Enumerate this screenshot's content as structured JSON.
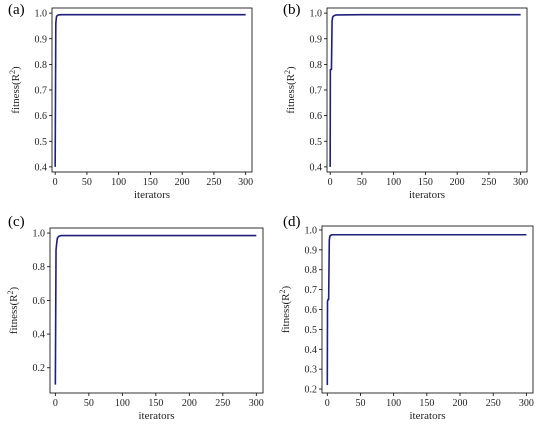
{
  "chart_data": [
    {
      "type": "line",
      "panel_label": "(a)",
      "xlabel": "iterators",
      "ylabel": "fitness(R",
      "ylabel_sup": "2",
      "ylabel_close": ")",
      "xlim": [
        -5,
        310
      ],
      "ylim": [
        0.38,
        1.02
      ],
      "xticks": [
        0,
        50,
        100,
        150,
        200,
        250,
        300
      ],
      "yticks": [
        0.4,
        0.5,
        0.6,
        0.7,
        0.8,
        0.9,
        1.0
      ],
      "ytick_labels": [
        "0.4",
        "0.5",
        "0.6",
        "0.7",
        "0.8",
        "0.9",
        "1.0"
      ],
      "grid": false,
      "series": [
        {
          "color": "#1f1f7a",
          "x": [
            0,
            1,
            2,
            3,
            5,
            10,
            50,
            100,
            200,
            300
          ],
          "y": [
            0.4,
            0.96,
            0.985,
            0.99,
            0.993,
            0.994,
            0.994,
            0.994,
            0.994,
            0.994
          ]
        }
      ]
    },
    {
      "type": "line",
      "panel_label": "(b)",
      "xlabel": "iterators",
      "ylabel": "fitness(R",
      "ylabel_sup": "2",
      "ylabel_close": ")",
      "xlim": [
        -5,
        310
      ],
      "ylim": [
        0.38,
        1.02
      ],
      "xticks": [
        0,
        50,
        100,
        150,
        200,
        250,
        300
      ],
      "yticks": [
        0.4,
        0.5,
        0.6,
        0.7,
        0.8,
        0.9,
        1.0
      ],
      "ytick_labels": [
        "0.4",
        "0.5",
        "0.6",
        "0.7",
        "0.8",
        "0.9",
        "1.0"
      ],
      "grid": false,
      "series": [
        {
          "color": "#1f1f7a",
          "x": [
            0,
            0.3,
            1,
            2,
            3,
            4,
            6,
            10,
            50,
            100,
            200,
            300
          ],
          "y": [
            0.4,
            0.78,
            0.78,
            0.78,
            0.97,
            0.985,
            0.99,
            0.993,
            0.994,
            0.994,
            0.994,
            0.994
          ]
        }
      ]
    },
    {
      "type": "line",
      "panel_label": "(c)",
      "xlabel": "iterators",
      "ylabel": "fitness(R",
      "ylabel_sup": "2",
      "ylabel_close": ")",
      "xlim": [
        -8,
        310
      ],
      "ylim": [
        0.05,
        1.03
      ],
      "xticks": [
        0,
        50,
        100,
        150,
        200,
        250,
        300
      ],
      "yticks": [
        0.2,
        0.4,
        0.6,
        0.8,
        1.0
      ],
      "ytick_labels": [
        "0.2",
        "0.4",
        "0.6",
        "0.8",
        "1.0"
      ],
      "grid": false,
      "series": [
        {
          "color": "#1f1f7a",
          "x": [
            0,
            1,
            2,
            3,
            5,
            8,
            50,
            100,
            200,
            300
          ],
          "y": [
            0.1,
            0.9,
            0.94,
            0.97,
            0.98,
            0.985,
            0.985,
            0.985,
            0.985,
            0.985
          ]
        }
      ]
    },
    {
      "type": "line",
      "panel_label": "(d)",
      "xlabel": "iterators",
      "ylabel": "fitness(R",
      "ylabel_sup": "2",
      "ylabel_close": ")",
      "xlim": [
        -8,
        310
      ],
      "ylim": [
        0.18,
        1.02
      ],
      "xticks": [
        0,
        50,
        100,
        150,
        200,
        250,
        300
      ],
      "yticks": [
        0.2,
        0.3,
        0.4,
        0.5,
        0.6,
        0.7,
        0.8,
        0.9,
        1.0
      ],
      "ytick_labels": [
        "0.2",
        "0.3",
        "0.4",
        "0.5",
        "0.6",
        "0.7",
        "0.8",
        "0.9",
        "1.0"
      ],
      "grid": false,
      "series": [
        {
          "color": "#1f1f7a",
          "x": [
            0,
            0.3,
            1,
            2,
            3,
            4,
            6,
            10,
            50,
            100,
            200,
            300
          ],
          "y": [
            0.22,
            0.64,
            0.65,
            0.65,
            0.95,
            0.97,
            0.975,
            0.976,
            0.976,
            0.976,
            0.976,
            0.976
          ]
        }
      ]
    }
  ]
}
